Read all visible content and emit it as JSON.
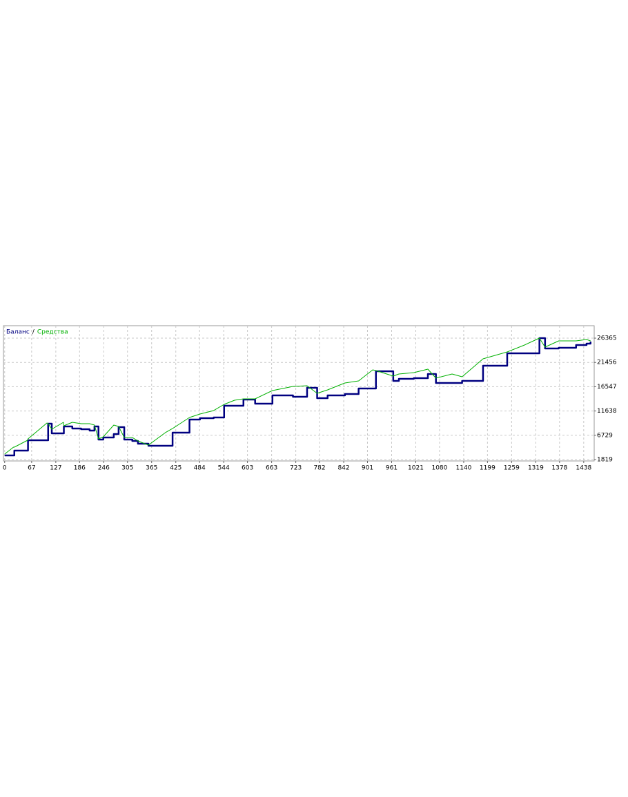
{
  "chart_data": {
    "type": "line",
    "legend_separator": "/",
    "x": [
      0,
      22,
      24,
      57,
      58,
      105,
      108,
      117,
      146,
      147,
      168,
      190,
      211,
      223,
      233,
      245,
      271,
      283,
      297,
      317,
      331,
      357,
      399,
      417,
      459,
      485,
      519,
      545,
      571,
      593,
      622,
      665,
      716,
      751,
      776,
      802,
      845,
      879,
      914,
      922,
      965,
      979,
      1016,
      1051,
      1071,
      1111,
      1136,
      1188,
      1248,
      1291,
      1328,
      1342,
      1376,
      1419,
      1445,
      1455
    ],
    "series": [
      {
        "name": "Баланс",
        "color": "#000080",
        "step": true,
        "values": [
          2656,
          2656,
          3633,
          3633,
          5725,
          5725,
          9073,
          7120,
          7120,
          8515,
          8097,
          7957,
          7678,
          8515,
          5865,
          6283,
          6981,
          8376,
          5865,
          5585,
          5027,
          4609,
          4609,
          7260,
          9910,
          10189,
          10329,
          12700,
          12700,
          13956,
          13119,
          14793,
          14514,
          16327,
          14235,
          14793,
          15071,
          16188,
          16188,
          19675,
          17722,
          18141,
          18281,
          19117,
          17303,
          17303,
          17722,
          20791,
          23302,
          23302,
          26371,
          24278,
          24418,
          24976,
          25255,
          25673
        ]
      },
      {
        "name": "Средства",
        "color": "#00b000",
        "step": false,
        "values": [
          2935,
          4330,
          4330,
          5725,
          6004,
          9213,
          9073,
          7957,
          9352,
          8655,
          9352,
          9073,
          9073,
          8794,
          6004,
          6423,
          8794,
          8515,
          6283,
          6283,
          5585,
          4749,
          7260,
          8097,
          10329,
          11026,
          11724,
          12979,
          13816,
          14095,
          14095,
          15769,
          16606,
          16746,
          15211,
          15909,
          17303,
          17722,
          19954,
          19815,
          18699,
          19117,
          19396,
          20094,
          18281,
          19117,
          18560,
          22186,
          23581,
          24976,
          26371,
          24558,
          25813,
          25813,
          26092,
          25813
        ]
      }
    ],
    "xlim": [
      -3,
      1464
    ],
    "xticks": [
      0,
      67,
      127,
      186,
      246,
      305,
      365,
      425,
      484,
      544,
      603,
      663,
      723,
      782,
      842,
      901,
      961,
      1021,
      1080,
      1140,
      1199,
      1259,
      1319,
      1378,
      1438
    ],
    "ylim": [
      1540,
      28880
    ],
    "yticks": [
      26365,
      21456,
      16547,
      11638,
      6729,
      1819
    ],
    "grid": true
  }
}
